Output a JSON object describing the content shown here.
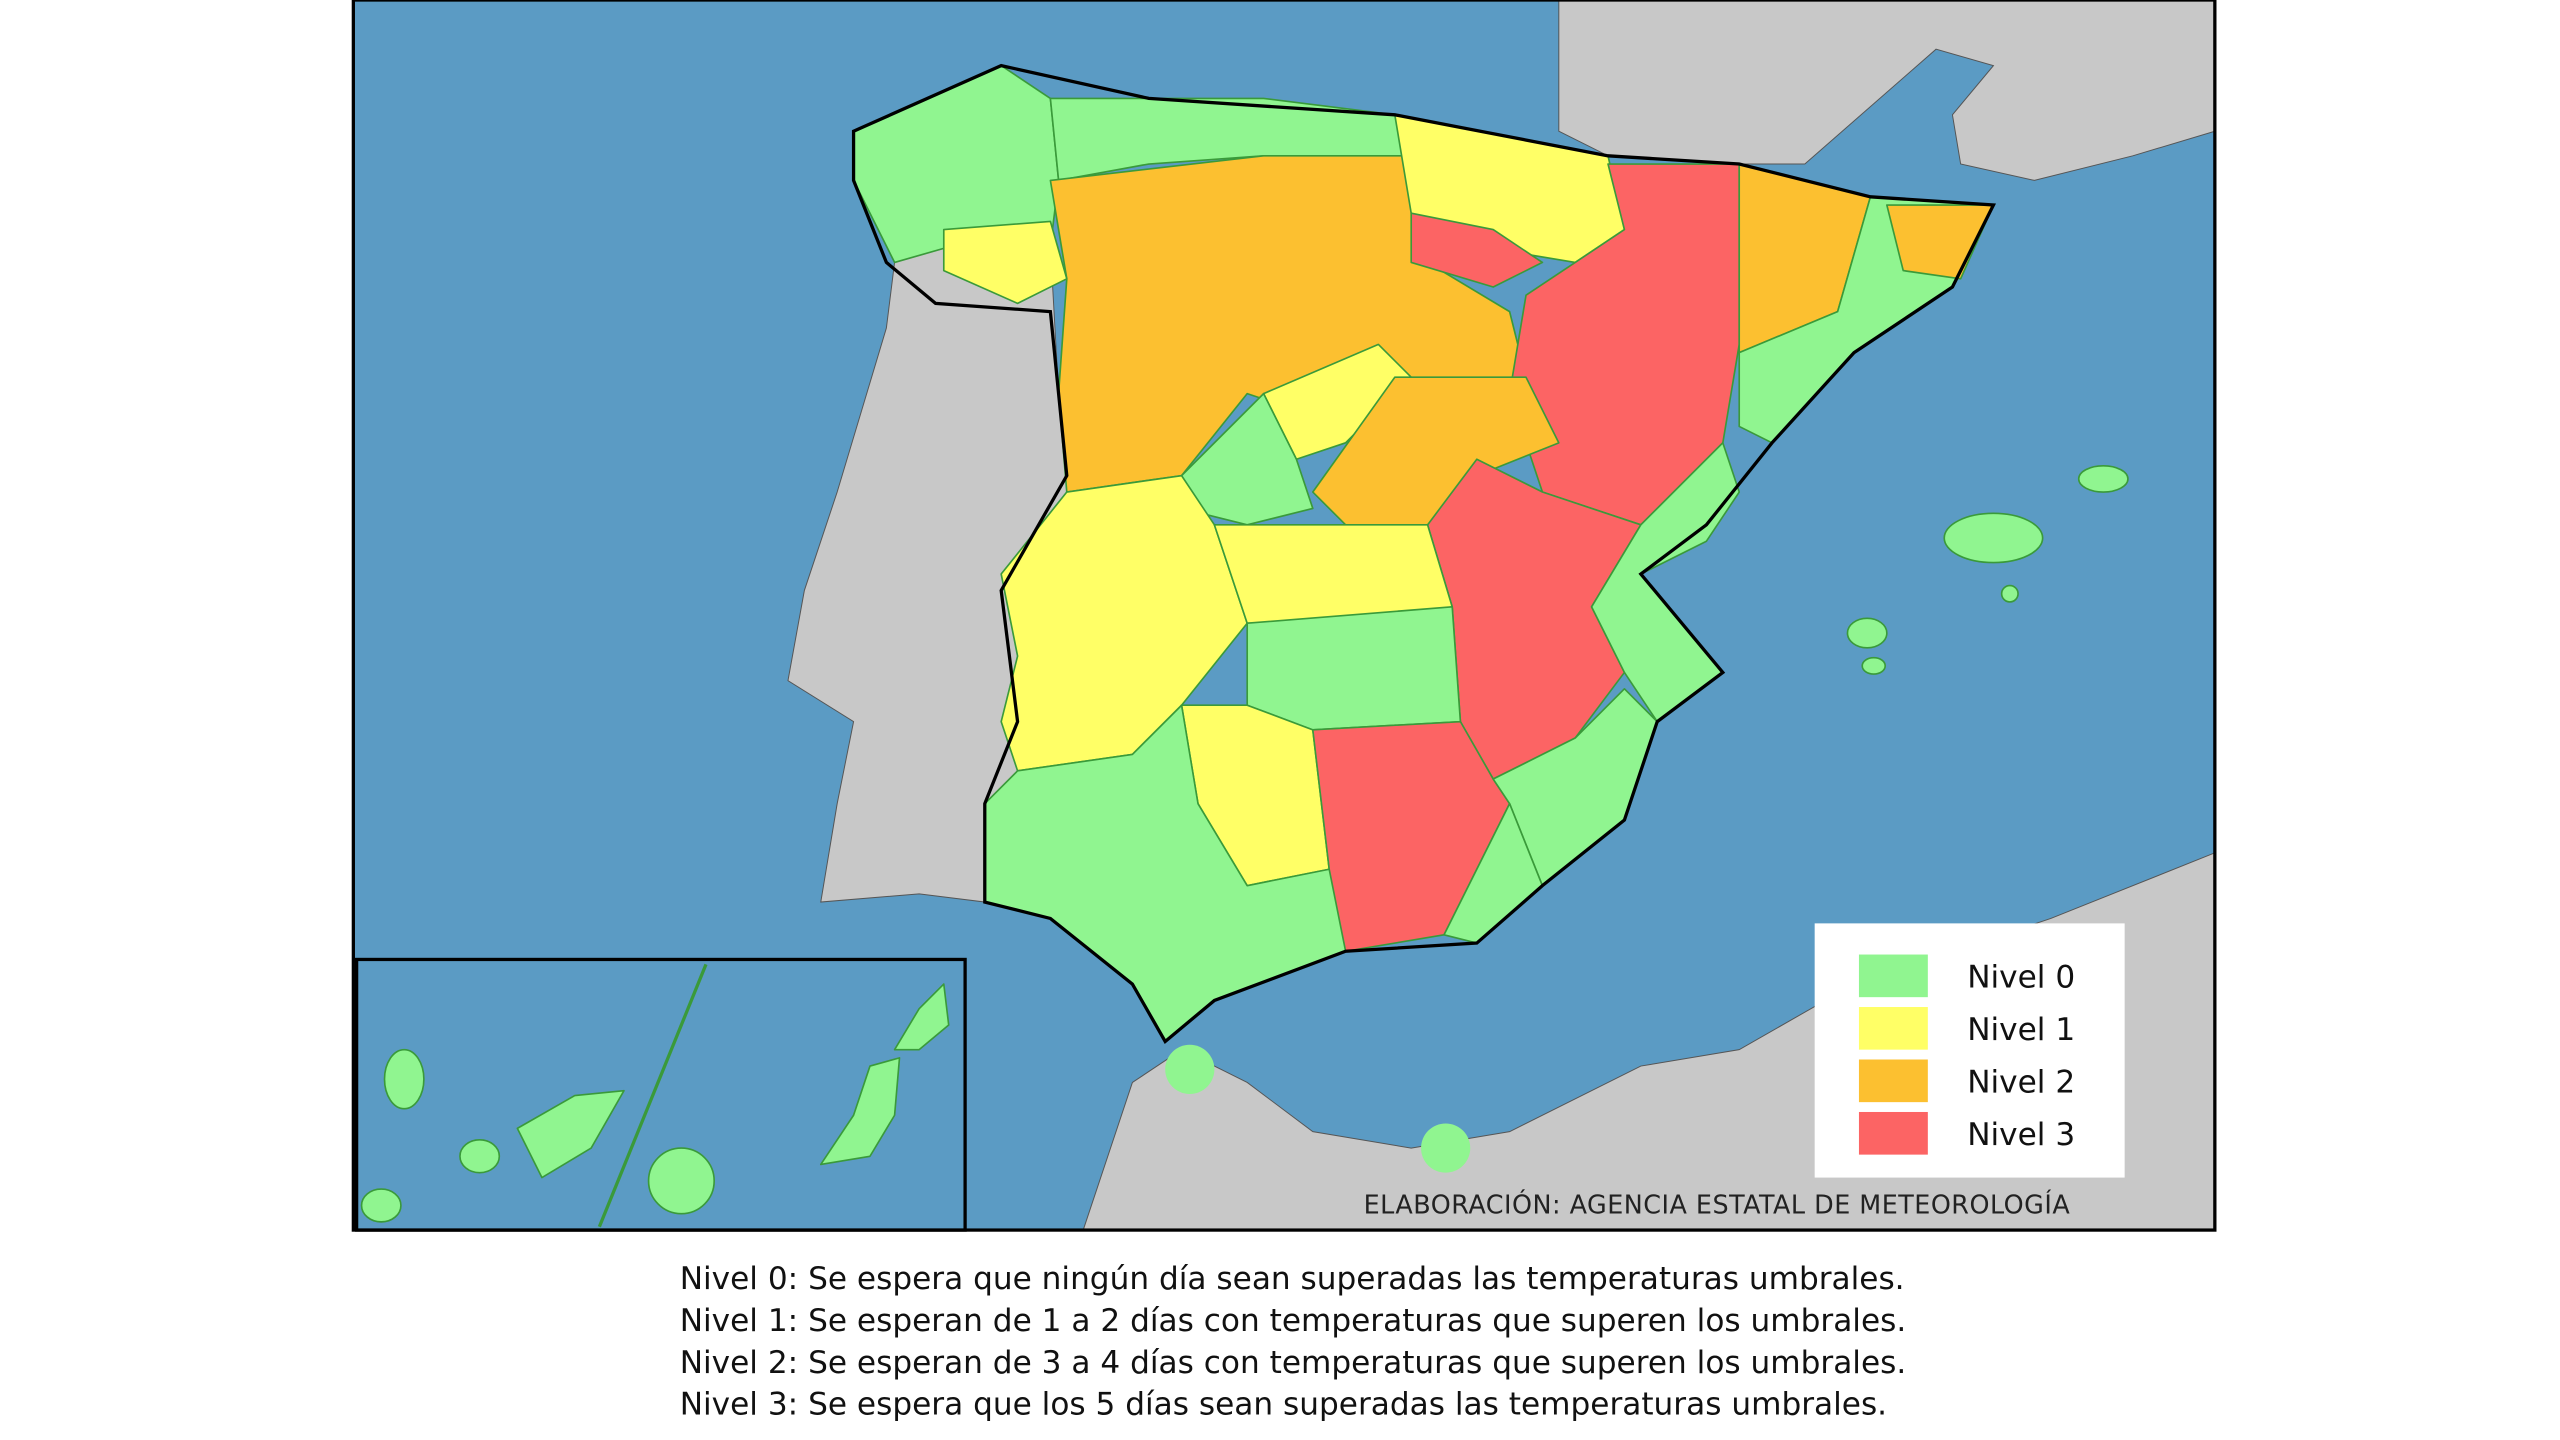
{
  "legend": [
    {
      "label": "Nivel 0",
      "color": "#90f590"
    },
    {
      "label": "Nivel 1",
      "color": "#ffff66"
    },
    {
      "label": "Nivel 2",
      "color": "#fcc030"
    },
    {
      "label": "Nivel 3",
      "color": "#fc6464"
    }
  ],
  "credit": "ELABORACIÓN: AGENCIA ESTATAL DE METEOROLOGÍA",
  "notes": [
    "Nivel 0: Se espera que ningún día sean superadas las temperaturas umbrales.",
    "Nivel 1:  Se esperan de 1  a 2 días con temperaturas que superen los umbrales.",
    "Nivel 2: Se esperan de 3 a 4 días con temperaturas que superen los umbrales.",
    "Nivel 3: Se espera que los 5 días sean superadas las temperaturas umbrales."
  ]
}
